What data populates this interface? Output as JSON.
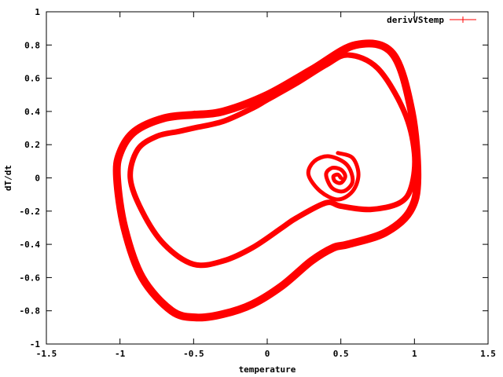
{
  "chart_data": {
    "type": "line",
    "title": "",
    "xlabel": "temperature",
    "ylabel": "dT/dt",
    "xlim": [
      -1.5,
      1.5
    ],
    "ylim": [
      -1,
      1
    ],
    "xticks": [
      -1.5,
      -1,
      -0.5,
      0,
      0.5,
      1,
      1.5
    ],
    "yticks": [
      -1,
      -0.8,
      -0.6,
      -0.4,
      -0.2,
      0,
      0.2,
      0.4,
      0.6,
      0.8,
      1
    ],
    "xtick_labels": [
      "-1.5",
      "-1",
      "-0.5",
      "0",
      "0.5",
      "1",
      "1.5"
    ],
    "ytick_labels": [
      "-1",
      "-0.8",
      "-0.6",
      "-0.4",
      "-0.2",
      "0",
      "0.2",
      "0.4",
      "0.6",
      "0.8",
      "1"
    ],
    "grid": false,
    "legend_position": "top-right",
    "series": [
      {
        "name": "derivVStemp",
        "color": "#ff0000",
        "outer_loop": {
          "x": [
            -0.5,
            -0.3,
            0.0,
            0.3,
            0.6,
            0.85,
            0.98,
            1.02,
            0.97,
            0.8,
            0.55,
            0.45,
            0.3,
            0.1,
            -0.1,
            -0.3,
            -0.48,
            -0.65,
            -0.85,
            -0.97,
            -1.02,
            -1.0,
            -0.9,
            -0.7,
            -0.5
          ],
          "y": [
            0.38,
            0.4,
            0.5,
            0.65,
            0.8,
            0.75,
            0.4,
            0.0,
            -0.2,
            -0.33,
            -0.4,
            -0.42,
            -0.5,
            -0.65,
            -0.76,
            -0.82,
            -0.84,
            -0.8,
            -0.6,
            -0.3,
            0.0,
            0.15,
            0.28,
            0.36,
            0.38
          ]
        },
        "inner_loop": {
          "x": [
            -0.5,
            -0.3,
            -0.1,
            0.0,
            0.2,
            0.4,
            0.55,
            0.75,
            0.93,
            1.0,
            0.98,
            0.9,
            0.7,
            0.5,
            0.4,
            0.2,
            0.1,
            -0.1,
            -0.3,
            -0.5,
            -0.7,
            -0.85,
            -0.93,
            -0.88,
            -0.75,
            -0.6,
            -0.5
          ],
          "y": [
            0.3,
            0.34,
            0.42,
            0.47,
            0.57,
            0.68,
            0.74,
            0.66,
            0.4,
            0.15,
            -0.05,
            -0.15,
            -0.19,
            -0.17,
            -0.15,
            -0.24,
            -0.3,
            -0.42,
            -0.5,
            -0.52,
            -0.4,
            -0.2,
            0.0,
            0.17,
            0.25,
            0.28,
            0.3
          ]
        },
        "spiral": {
          "x": [
            0.48,
            0.58,
            0.62,
            0.58,
            0.48,
            0.36,
            0.28,
            0.32,
            0.42,
            0.54,
            0.58,
            0.52,
            0.44,
            0.4,
            0.44,
            0.5,
            0.53,
            0.5,
            0.46,
            0.45,
            0.48,
            0.5
          ],
          "y": [
            0.15,
            0.12,
            0.02,
            -0.08,
            -0.13,
            -0.08,
            0.02,
            0.1,
            0.13,
            0.08,
            -0.02,
            -0.08,
            -0.06,
            0.02,
            0.06,
            0.05,
            0.01,
            -0.03,
            -0.02,
            0.01,
            0.02,
            0.0
          ]
        }
      }
    ]
  }
}
